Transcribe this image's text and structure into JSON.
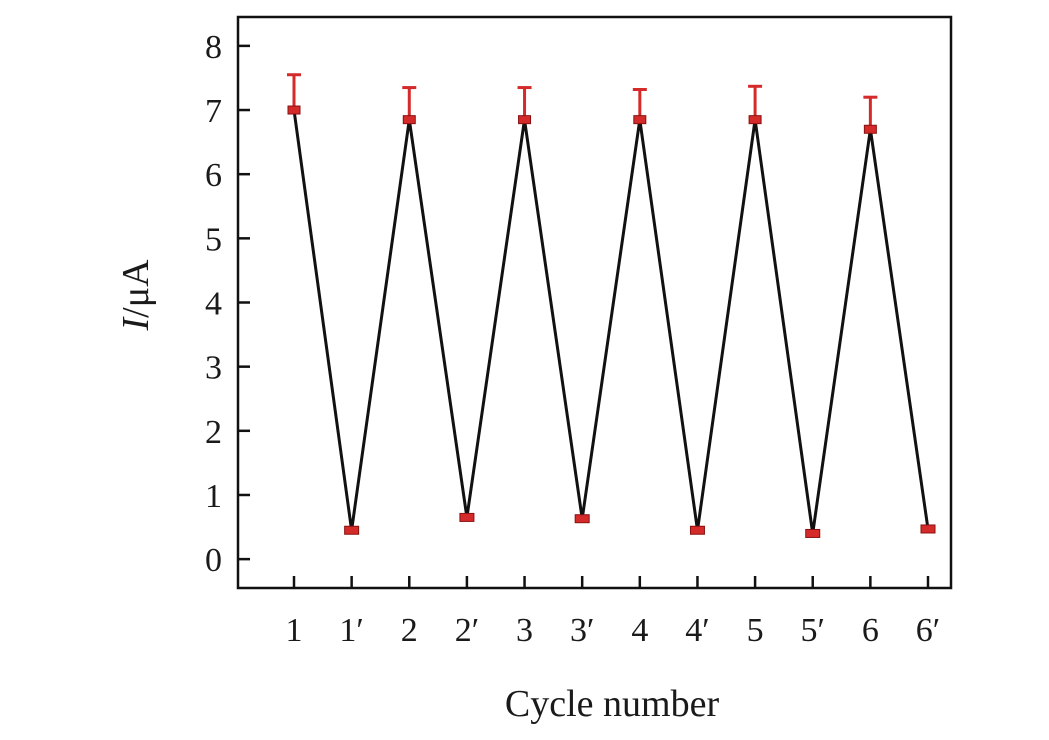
{
  "chart_data": {
    "type": "line",
    "title": "",
    "xlabel": "Cycle number",
    "ylabel_italic": "I",
    "ylabel_unit": "/μA",
    "categories": [
      "1",
      "1′",
      "2",
      "2′",
      "3",
      "3′",
      "4",
      "4′",
      "5",
      "5′",
      "6",
      "6′"
    ],
    "yticks": [
      "0",
      "1",
      "2",
      "3",
      "4",
      "5",
      "6",
      "7",
      "8"
    ],
    "ylim": [
      -0.45,
      8.45
    ],
    "grid": false,
    "series": [
      {
        "values": [
          7.0,
          0.45,
          6.85,
          0.65,
          6.85,
          0.63,
          6.85,
          0.45,
          6.85,
          0.4,
          6.7,
          0.47
        ],
        "error_upper": [
          0.55,
          0.02,
          0.5,
          0.02,
          0.5,
          0.02,
          0.47,
          0.02,
          0.52,
          0.02,
          0.5,
          0.02
        ],
        "error_lower": [
          0.0,
          0.02,
          0.0,
          0.02,
          0.0,
          0.02,
          0.0,
          0.02,
          0.0,
          0.02,
          0.0,
          0.02
        ]
      }
    ],
    "colors": {
      "line": "#111111",
      "markers": "#d42a2a"
    }
  }
}
